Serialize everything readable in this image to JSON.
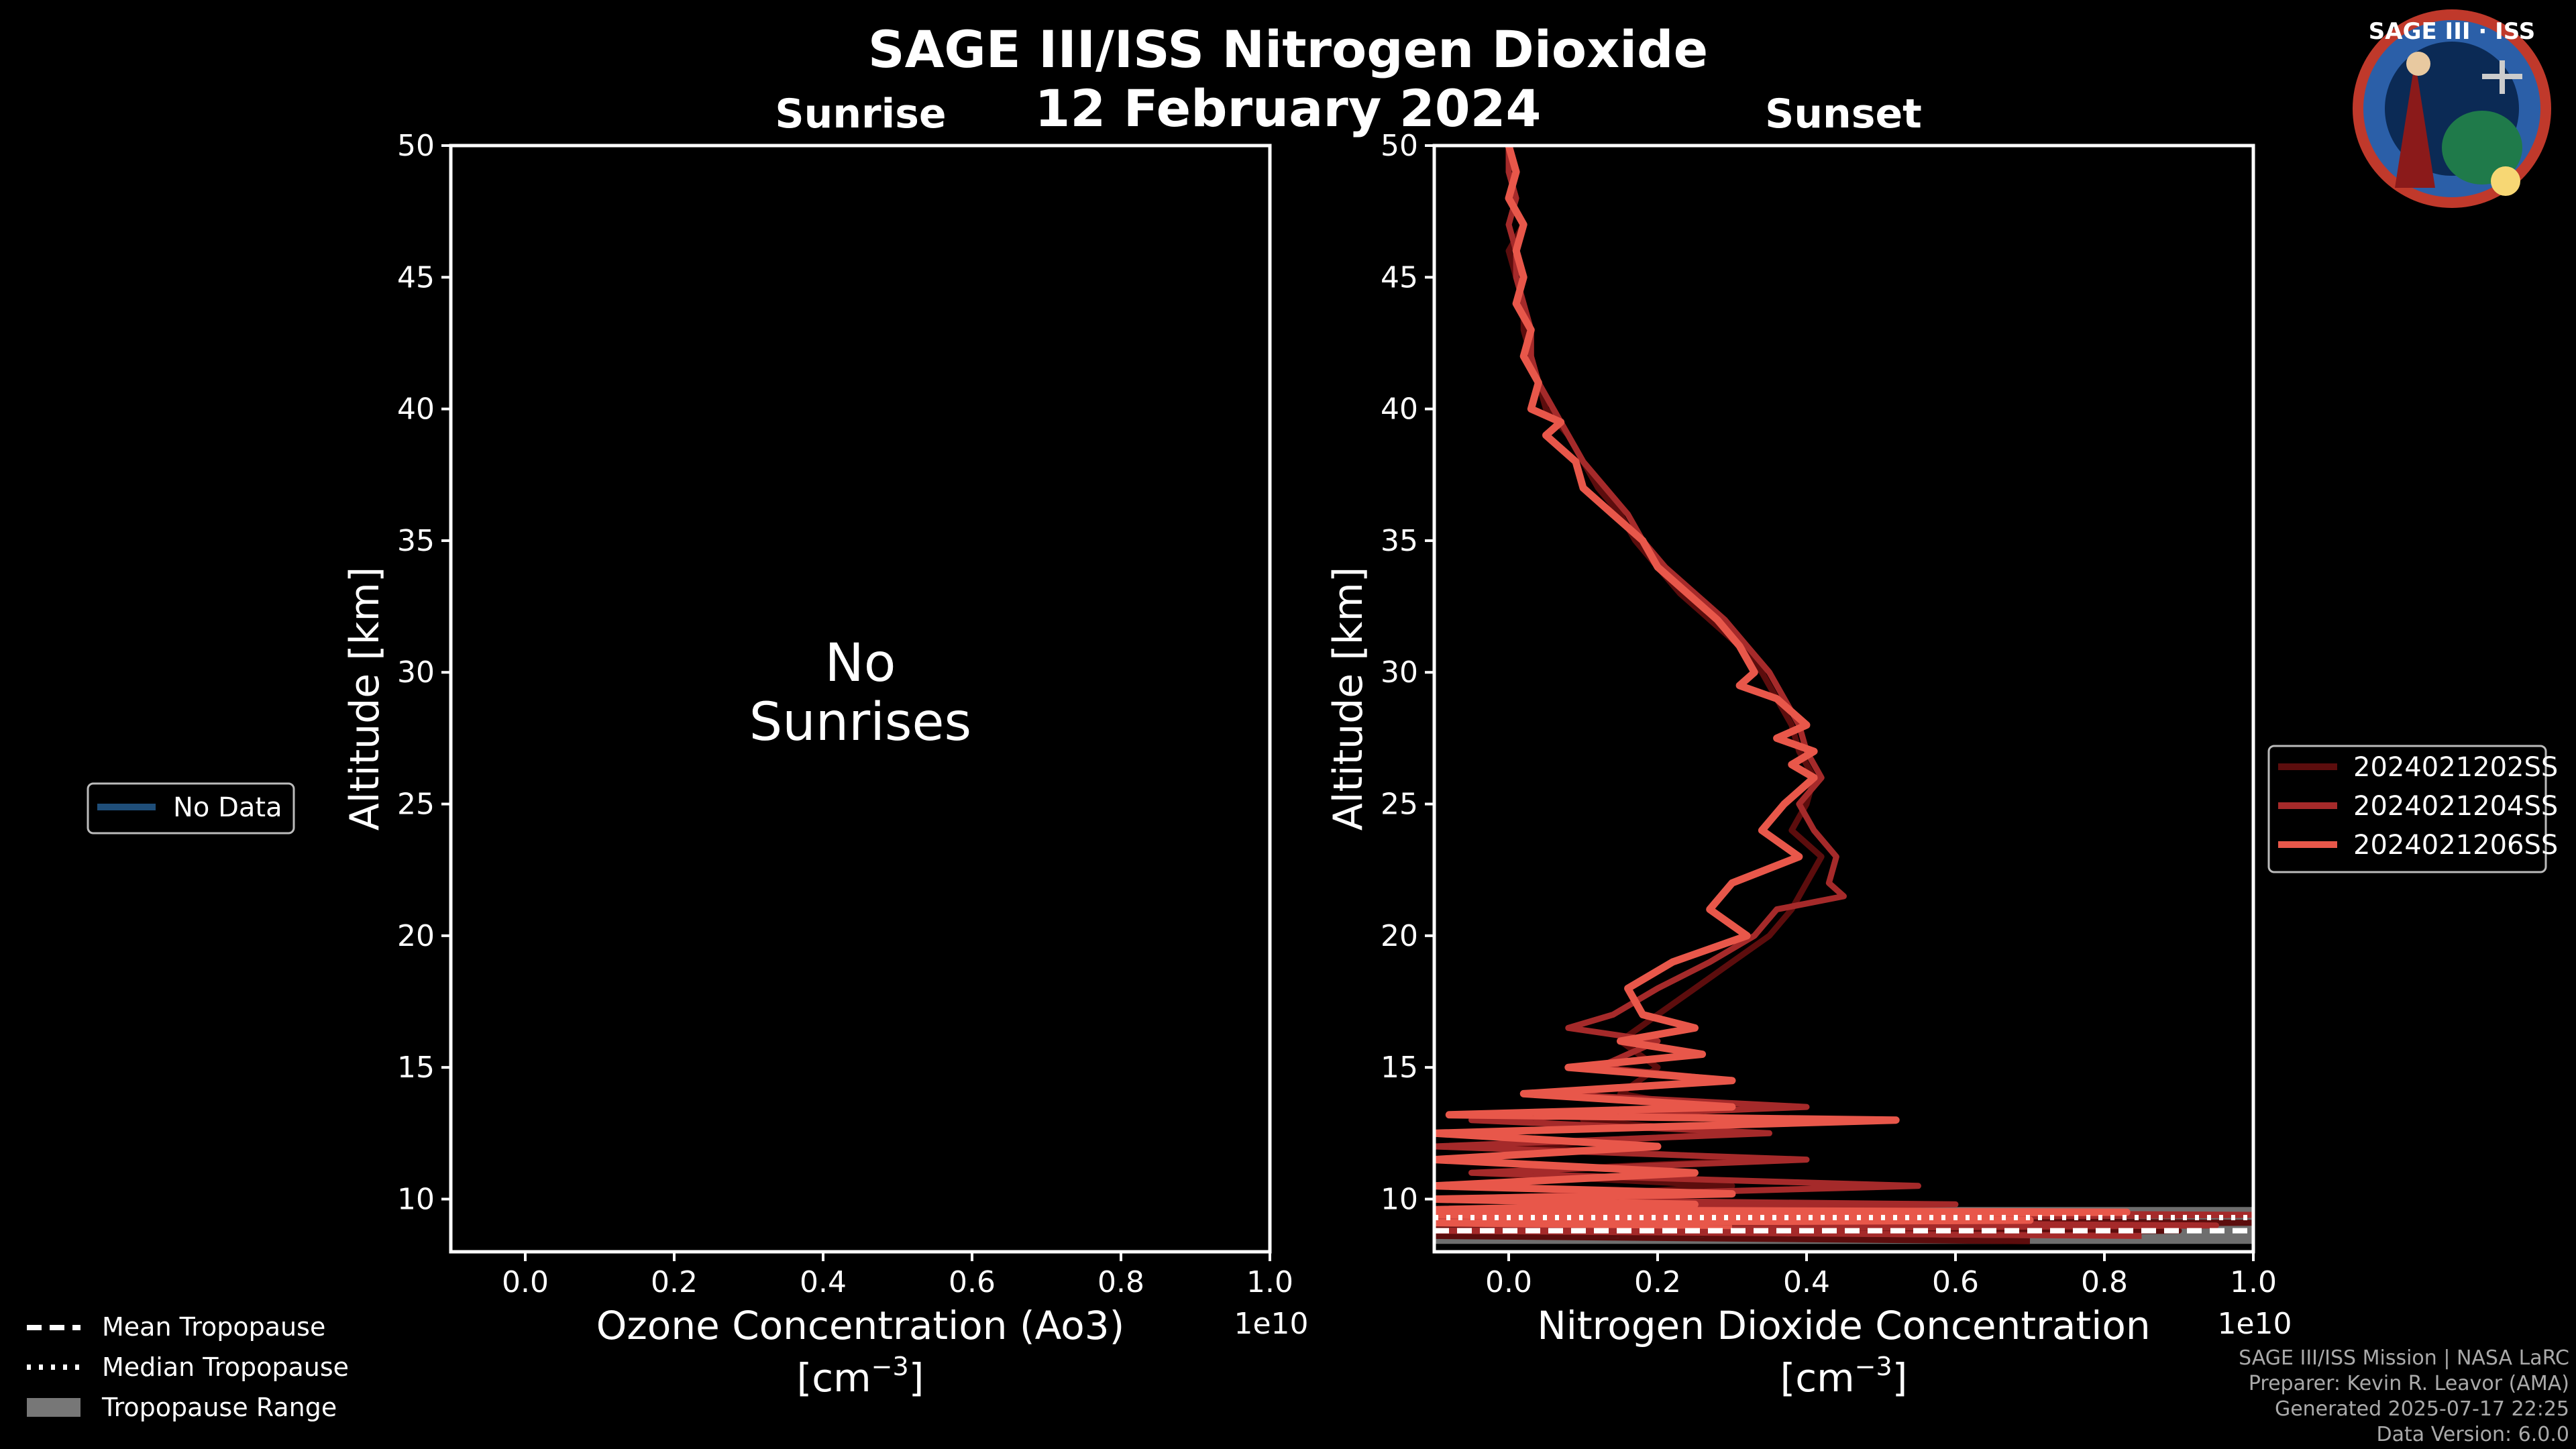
{
  "title": "SAGE III/ISS Nitrogen Dioxide",
  "date": "12 February 2024",
  "logo": {
    "text": "SAGE III · ISS",
    "icon": "sage-iii-iss-mission-patch"
  },
  "footer": {
    "line1": "SAGE III/ISS Mission | NASA LaRC",
    "line2": "Preparer: Kevin R. Leavor (AMA)",
    "line3": "Generated 2025-07-17 22:25",
    "line4": "Data Version: 6.0.0"
  },
  "tropopause_legend": [
    {
      "label": "Mean Tropopause",
      "style": "dashed"
    },
    {
      "label": "Median Tropopause",
      "style": "dotted"
    },
    {
      "label": "Tropopause Range",
      "style": "band"
    }
  ],
  "chart_data": [
    {
      "type": "line",
      "title": "Sunrise",
      "xlabel": "Ozone Concentration (Ao3)",
      "xunit": "[cm$^{-3}$]",
      "xunit_display": "[cm",
      "xunit_sup": "−3",
      "xunit_close": "]",
      "ylabel": "Altitude [km]",
      "xlim": [
        -0.1,
        1.0
      ],
      "ylim": [
        8,
        50
      ],
      "x_scale_label": "1e10",
      "xticks": [
        "0.0",
        "0.2",
        "0.4",
        "0.6",
        "0.8",
        "1.0"
      ],
      "yticks": [
        "10",
        "15",
        "20",
        "25",
        "30",
        "35",
        "40",
        "45",
        "50"
      ],
      "message": [
        "No",
        "Sunrises"
      ],
      "legend": [
        {
          "name": "No Data",
          "color": "#1f4e79"
        }
      ],
      "series": []
    },
    {
      "type": "line",
      "title": "Sunset",
      "xlabel": "Nitrogen Dioxide Concentration",
      "xunit": "[cm$^{-3}$]",
      "xunit_display": "[cm",
      "xunit_sup": "−3",
      "xunit_close": "]",
      "ylabel": "Altitude [km]",
      "xlim": [
        -0.1,
        1.0
      ],
      "ylim": [
        8,
        50
      ],
      "x_scale_label": "1e10",
      "xticks": [
        "0.0",
        "0.2",
        "0.4",
        "0.6",
        "0.8",
        "1.0"
      ],
      "yticks": [
        "10",
        "15",
        "20",
        "25",
        "30",
        "35",
        "40",
        "45",
        "50"
      ],
      "tropopause": {
        "mean": 8.8,
        "median": 9.3,
        "range": [
          8.3,
          9.7
        ]
      },
      "series": [
        {
          "name": "2024021202SS",
          "color": "#5c0d0d",
          "points": [
            [
              0.0,
              50
            ],
            [
              0.01,
              49
            ],
            [
              0.0,
              48
            ],
            [
              0.02,
              47
            ],
            [
              0.0,
              46
            ],
            [
              0.01,
              45
            ],
            [
              0.02,
              44
            ],
            [
              0.02,
              43
            ],
            [
              0.03,
              42
            ],
            [
              0.04,
              41
            ],
            [
              0.05,
              40
            ],
            [
              0.08,
              39
            ],
            [
              0.1,
              38
            ],
            [
              0.12,
              37
            ],
            [
              0.15,
              36
            ],
            [
              0.17,
              35
            ],
            [
              0.2,
              34
            ],
            [
              0.23,
              33
            ],
            [
              0.27,
              32
            ],
            [
              0.31,
              31
            ],
            [
              0.34,
              30
            ],
            [
              0.36,
              29
            ],
            [
              0.38,
              28
            ],
            [
              0.39,
              27
            ],
            [
              0.41,
              26
            ],
            [
              0.4,
              25
            ],
            [
              0.38,
              24
            ],
            [
              0.42,
              23
            ],
            [
              0.4,
              22
            ],
            [
              0.38,
              21
            ],
            [
              0.35,
              20
            ],
            [
              0.3,
              19
            ],
            [
              0.25,
              18
            ],
            [
              0.2,
              17
            ],
            [
              0.15,
              16
            ],
            [
              0.2,
              15
            ],
            [
              0.15,
              14
            ],
            [
              0.25,
              13.5
            ],
            [
              0.1,
              13
            ],
            [
              0.3,
              12.5
            ],
            [
              0.0,
              12
            ],
            [
              0.35,
              11.5
            ],
            [
              -0.05,
              11
            ],
            [
              0.3,
              10.5
            ],
            [
              0.0,
              10
            ],
            [
              0.5,
              9.8
            ],
            [
              -0.1,
              9.6
            ],
            [
              0.8,
              9.5
            ],
            [
              -0.1,
              9.3
            ],
            [
              1.0,
              9.1
            ],
            [
              -0.1,
              9.0
            ],
            [
              0.9,
              8.8
            ],
            [
              -0.1,
              8.6
            ],
            [
              0.7,
              8.4
            ]
          ]
        },
        {
          "name": "2024021204SS",
          "color": "#a52a2a",
          "points": [
            [
              0.0,
              50
            ],
            [
              0.0,
              49
            ],
            [
              0.01,
              48
            ],
            [
              0.0,
              47
            ],
            [
              0.01,
              46
            ],
            [
              0.01,
              45
            ],
            [
              0.02,
              44
            ],
            [
              0.03,
              43
            ],
            [
              0.03,
              42
            ],
            [
              0.04,
              41
            ],
            [
              0.06,
              40
            ],
            [
              0.08,
              39
            ],
            [
              0.1,
              38
            ],
            [
              0.13,
              37
            ],
            [
              0.16,
              36
            ],
            [
              0.18,
              35
            ],
            [
              0.21,
              34
            ],
            [
              0.25,
              33
            ],
            [
              0.29,
              32
            ],
            [
              0.32,
              31
            ],
            [
              0.35,
              30
            ],
            [
              0.37,
              29
            ],
            [
              0.39,
              28
            ],
            [
              0.4,
              27
            ],
            [
              0.42,
              26
            ],
            [
              0.39,
              25
            ],
            [
              0.41,
              24
            ],
            [
              0.44,
              23
            ],
            [
              0.43,
              22
            ],
            [
              0.45,
              21.5
            ],
            [
              0.36,
              21
            ],
            [
              0.33,
              20
            ],
            [
              0.27,
              19
            ],
            [
              0.2,
              18
            ],
            [
              0.14,
              17
            ],
            [
              0.08,
              16.5
            ],
            [
              0.2,
              16
            ],
            [
              0.12,
              15
            ],
            [
              0.3,
              14.5
            ],
            [
              0.05,
              14
            ],
            [
              0.4,
              13.5
            ],
            [
              -0.05,
              13
            ],
            [
              0.35,
              12.5
            ],
            [
              -0.1,
              12
            ],
            [
              0.4,
              11.5
            ],
            [
              -0.05,
              11
            ],
            [
              0.55,
              10.5
            ],
            [
              -0.1,
              10
            ],
            [
              0.6,
              9.8
            ],
            [
              -0.1,
              9.6
            ],
            [
              1.0,
              9.4
            ],
            [
              -0.1,
              9.2
            ],
            [
              0.95,
              9.0
            ],
            [
              -0.1,
              8.8
            ],
            [
              0.85,
              8.6
            ]
          ]
        },
        {
          "name": "2024021206SS",
          "color": "#e8574a",
          "points": [
            [
              0.0,
              50
            ],
            [
              0.01,
              49
            ],
            [
              0.0,
              48
            ],
            [
              0.02,
              47
            ],
            [
              0.01,
              46
            ],
            [
              0.02,
              45
            ],
            [
              0.01,
              44
            ],
            [
              0.03,
              43
            ],
            [
              0.02,
              42
            ],
            [
              0.04,
              41
            ],
            [
              0.03,
              40
            ],
            [
              0.07,
              39.5
            ],
            [
              0.05,
              39
            ],
            [
              0.09,
              38
            ],
            [
              0.1,
              37
            ],
            [
              0.14,
              36
            ],
            [
              0.18,
              35
            ],
            [
              0.2,
              34
            ],
            [
              0.24,
              33
            ],
            [
              0.28,
              32
            ],
            [
              0.31,
              31
            ],
            [
              0.33,
              30
            ],
            [
              0.31,
              29.5
            ],
            [
              0.36,
              29
            ],
            [
              0.4,
              28
            ],
            [
              0.36,
              27.5
            ],
            [
              0.41,
              27
            ],
            [
              0.38,
              26.5
            ],
            [
              0.41,
              26
            ],
            [
              0.37,
              25
            ],
            [
              0.34,
              24
            ],
            [
              0.39,
              23
            ],
            [
              0.3,
              22
            ],
            [
              0.27,
              21
            ],
            [
              0.32,
              20
            ],
            [
              0.22,
              19
            ],
            [
              0.16,
              18
            ],
            [
              0.18,
              17
            ],
            [
              0.25,
              16.5
            ],
            [
              0.15,
              16
            ],
            [
              0.26,
              15.5
            ],
            [
              0.08,
              15
            ],
            [
              0.3,
              14.5
            ],
            [
              0.02,
              14
            ],
            [
              0.3,
              13.5
            ],
            [
              -0.08,
              13.2
            ],
            [
              0.52,
              13
            ],
            [
              -0.1,
              12.5
            ],
            [
              0.2,
              12
            ],
            [
              -0.1,
              11.5
            ],
            [
              0.25,
              11
            ],
            [
              -0.1,
              10.5
            ],
            [
              0.3,
              10.2
            ],
            [
              -0.1,
              10
            ],
            [
              0.25,
              9.8
            ],
            [
              -0.1,
              9.6
            ],
            [
              0.83,
              9.5
            ],
            [
              -0.1,
              9.4
            ],
            [
              0.7,
              9.2
            ],
            [
              -0.1,
              9.1
            ],
            [
              0.3,
              9.0
            ]
          ]
        }
      ]
    }
  ]
}
